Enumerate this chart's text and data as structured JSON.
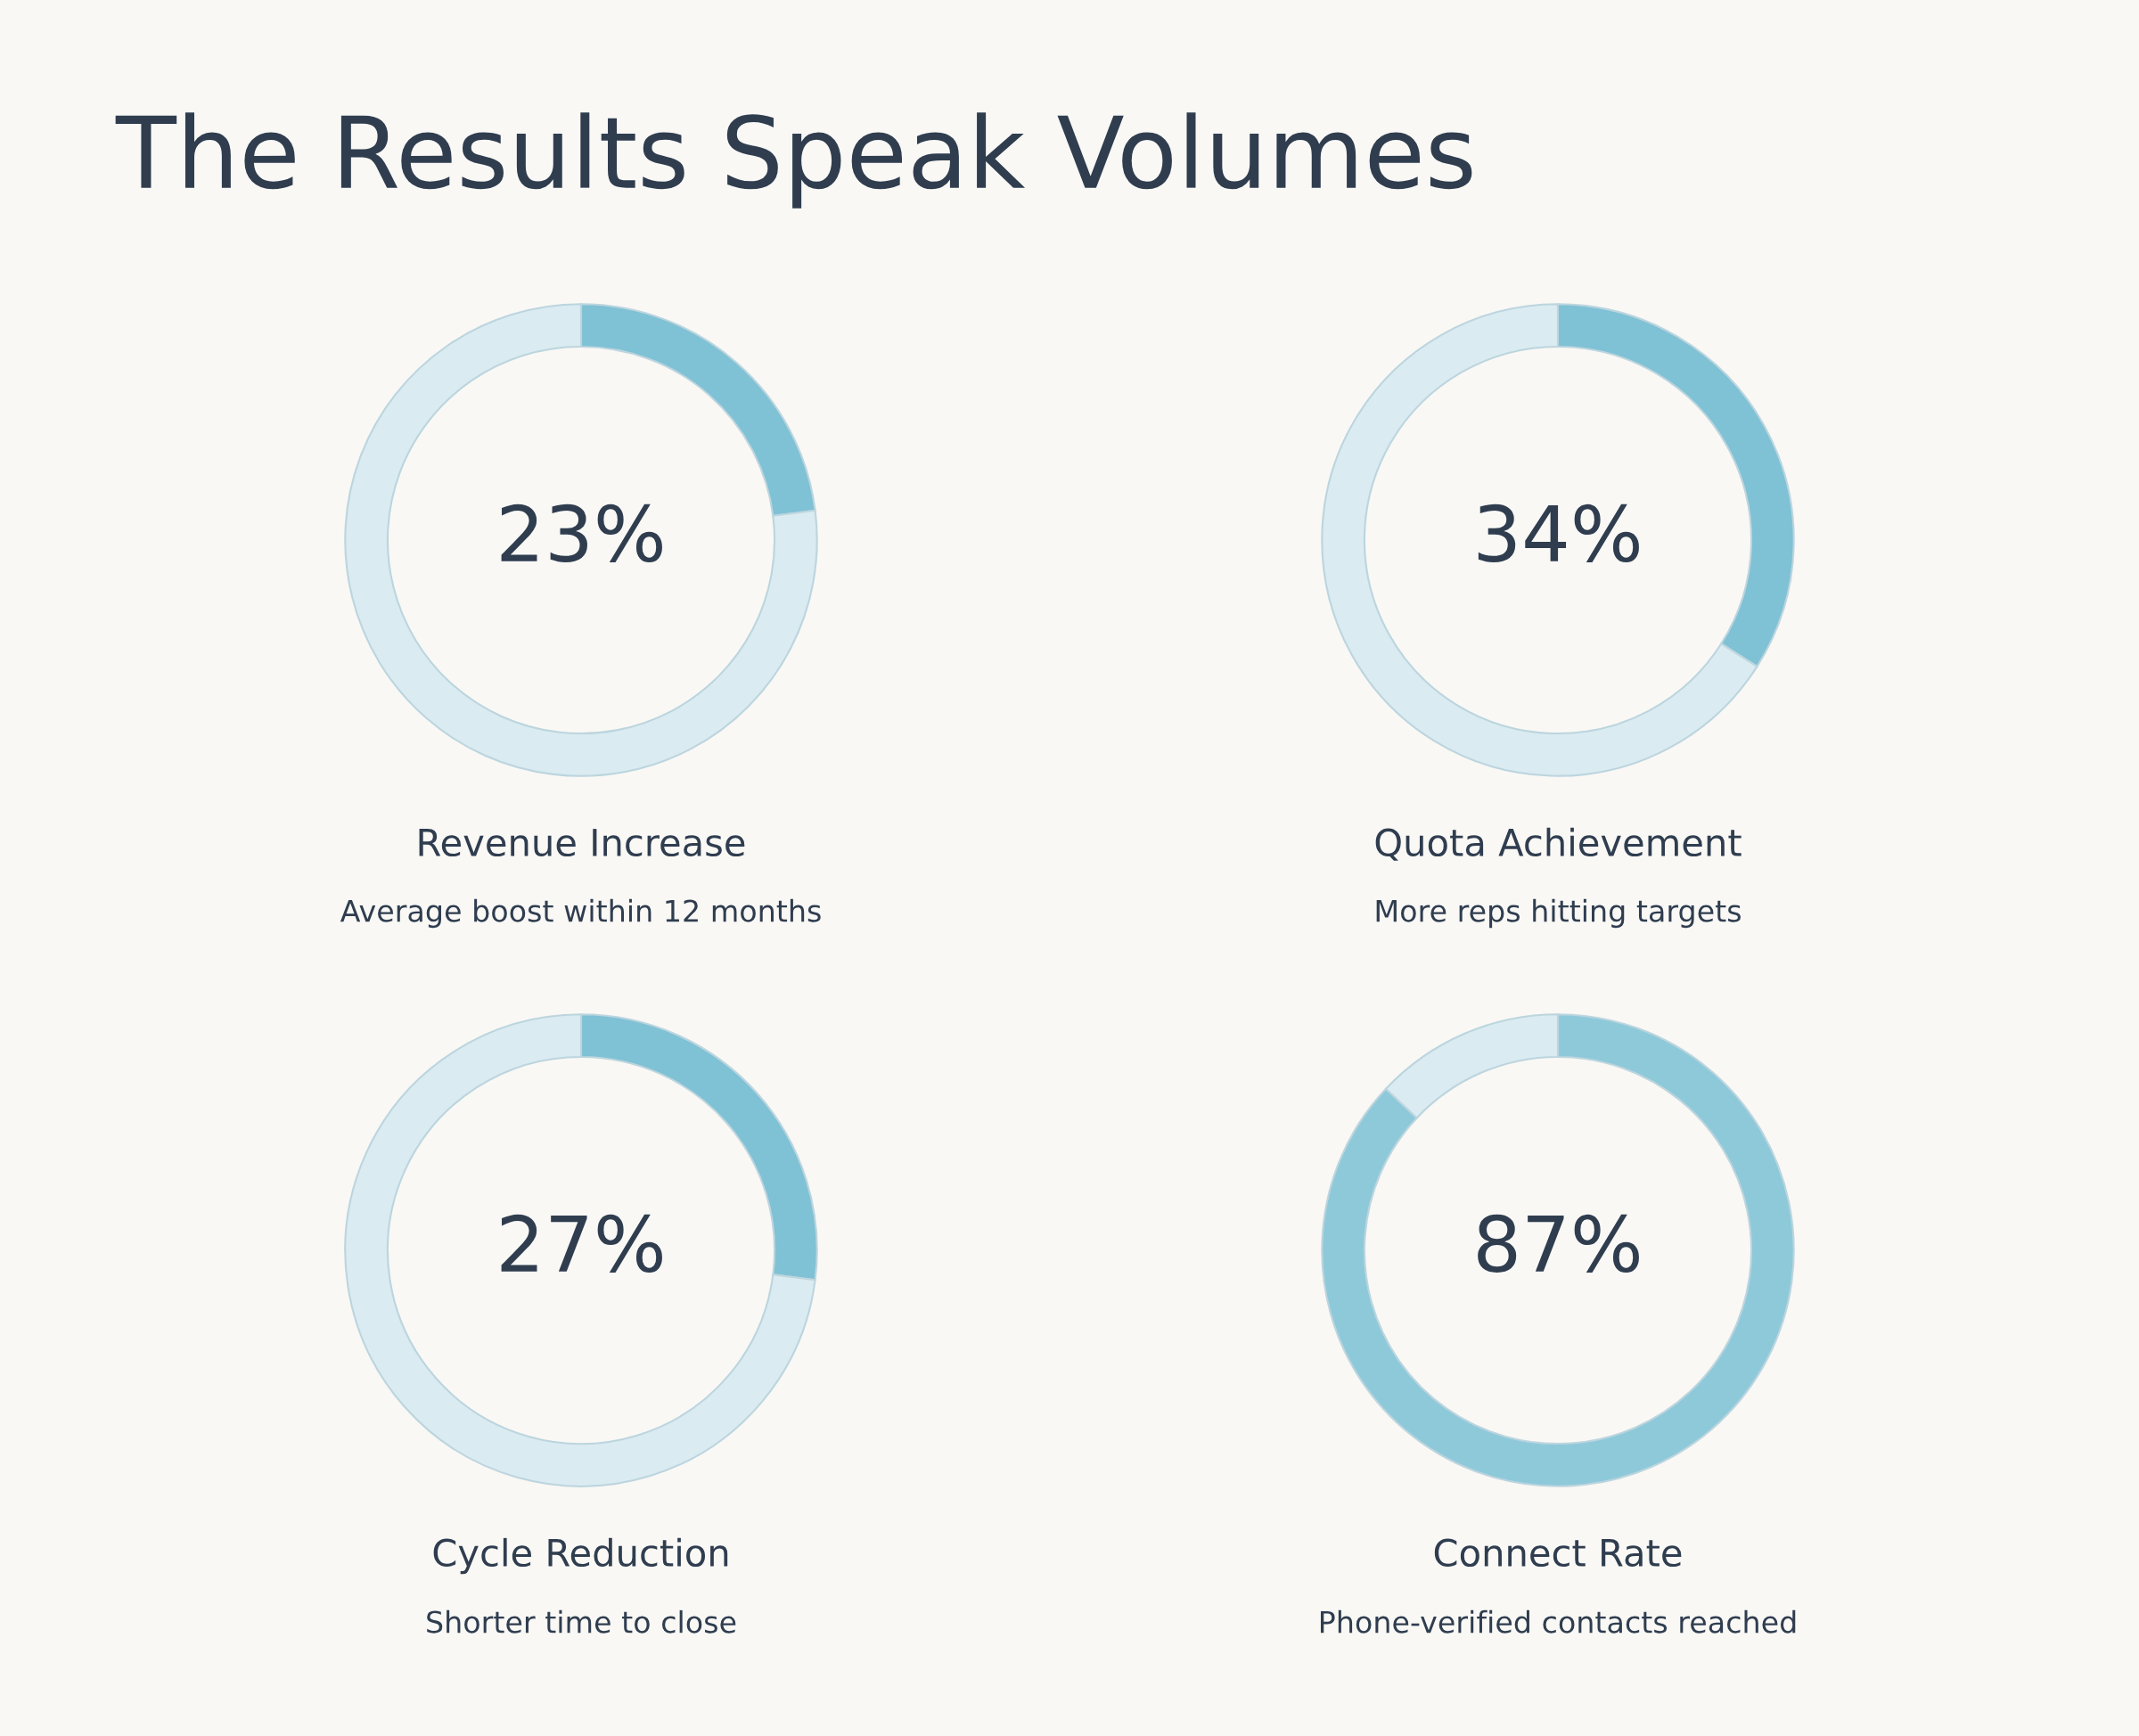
{
  "chart_data": [
    {
      "type": "donut",
      "categories": [
        null,
        null
      ],
      "values": [
        23,
        77
      ],
      "colors": [
        "#7fc1d5",
        "#daebf1"
      ],
      "value_labels": [
        "23%",
        null
      ],
      "title": "Revenue Increase",
      "subtitle": "Average boost within 12 months",
      "annotations": [
        "The Results Speak Volumes"
      ]
    },
    {
      "type": "donut",
      "categories": [
        null,
        null
      ],
      "values": [
        34,
        66
      ],
      "colors": [
        "#7fc1d5",
        "#daebf1"
      ],
      "value_labels": [
        "34%",
        null
      ],
      "title": "Quota Achievement",
      "subtitle": "More reps hitting targets"
    },
    {
      "type": "donut",
      "categories": [
        null,
        null
      ],
      "values": [
        27,
        73
      ],
      "colors": [
        "#7fc1d5",
        "#daebf1"
      ],
      "value_labels": [
        "27%",
        null
      ],
      "title": "Cycle Reduction",
      "subtitle": "Shorter time to close"
    },
    {
      "type": "donut",
      "categories": [
        null,
        null
      ],
      "values": [
        87,
        13
      ],
      "colors": [
        "#8ec9da",
        "#daebf1"
      ],
      "value_labels": [
        "87%",
        null
      ],
      "title": "Connect Rate",
      "subtitle": "Phone-verified contacts reached"
    }
  ]
}
